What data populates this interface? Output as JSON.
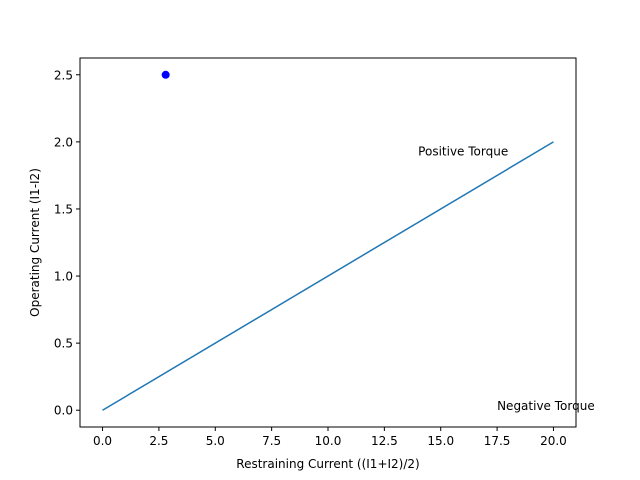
{
  "chart_data": {
    "type": "line",
    "title": "",
    "xlabel": "Restraining Current ((I1+I2)/2)",
    "ylabel": "Operating Current (I1-I2)",
    "xlim": [
      -1,
      21
    ],
    "ylim": [
      -0.125,
      2.625
    ],
    "grid": false,
    "x_ticks": [
      0,
      2.5,
      5,
      7.5,
      10,
      12.5,
      15,
      17.5,
      20
    ],
    "x_tick_labels": [
      "0.0",
      "2.5",
      "5.0",
      "7.5",
      "10.0",
      "12.5",
      "15.0",
      "17.5",
      "20.0"
    ],
    "y_ticks": [
      0,
      0.5,
      1,
      1.5,
      2,
      2.5
    ],
    "y_tick_labels": [
      "0.0",
      "0.5",
      "1.0",
      "1.5",
      "2.0",
      "2.5"
    ],
    "series": [
      {
        "type": "line",
        "color": "#1f77b4",
        "x": [
          0,
          20
        ],
        "y": [
          0,
          2
        ]
      },
      {
        "type": "scatter",
        "color": "#0000ff",
        "x": [
          2.8
        ],
        "y": [
          2.5
        ]
      }
    ],
    "annotations": [
      {
        "text": "Positive Torque",
        "x": 14,
        "y": 1.9
      },
      {
        "text": "Negative Torque",
        "x": 17.5,
        "y": 0
      }
    ]
  }
}
